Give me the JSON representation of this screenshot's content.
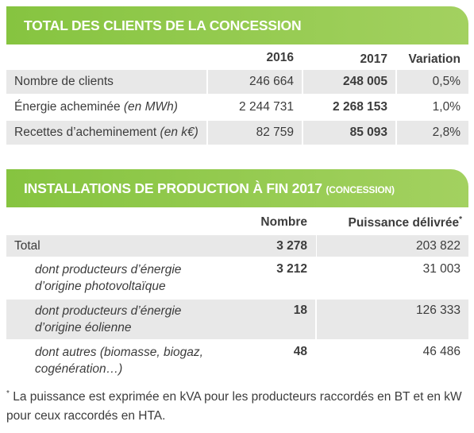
{
  "section1": {
    "title": "TOTAL DES CLIENTS DE LA CONCESSION",
    "columns": [
      "2016",
      "2017",
      "Variation"
    ],
    "rows": [
      {
        "label": "Nombre de clients",
        "values": [
          "246 664",
          "248 005",
          "0,5%"
        ]
      },
      {
        "label": "Énergie acheminée",
        "unit": "(en MWh)",
        "values": [
          "2 244 731",
          "2 268 153",
          "1,0%"
        ]
      },
      {
        "label": "Recettes d’acheminement",
        "unit": "(en k€)",
        "values": [
          "82 759",
          "85 093",
          "2,8%"
        ]
      }
    ]
  },
  "section2": {
    "title": "INSTALLATIONS DE PRODUCTION À FIN 2017",
    "title_note": "(CONCESSION)",
    "columns": [
      "Nombre",
      "Puissance délivrée"
    ],
    "column_note": "*",
    "rows": [
      {
        "label_lines": [
          "Total"
        ],
        "values": [
          "3 278",
          "203 822"
        ]
      },
      {
        "label_lines": [
          "dont producteurs d’énergie",
          "d’origine photovoltaïque"
        ],
        "values": [
          "3 212",
          "31 003"
        ]
      },
      {
        "label_lines": [
          "dont producteurs d’énergie",
          "d’origine éolienne"
        ],
        "values": [
          "18",
          "126 333"
        ]
      },
      {
        "label_lines": [
          "dont autres (biomasse, biogaz,",
          "cogénération…)"
        ],
        "values": [
          "48",
          "46 486"
        ]
      }
    ]
  },
  "footnote": {
    "marker": "*",
    "text": "La puissance est exprimée en kVA pour les producteurs raccordés en BT et en kW pour ceux raccordés en HTA."
  }
}
